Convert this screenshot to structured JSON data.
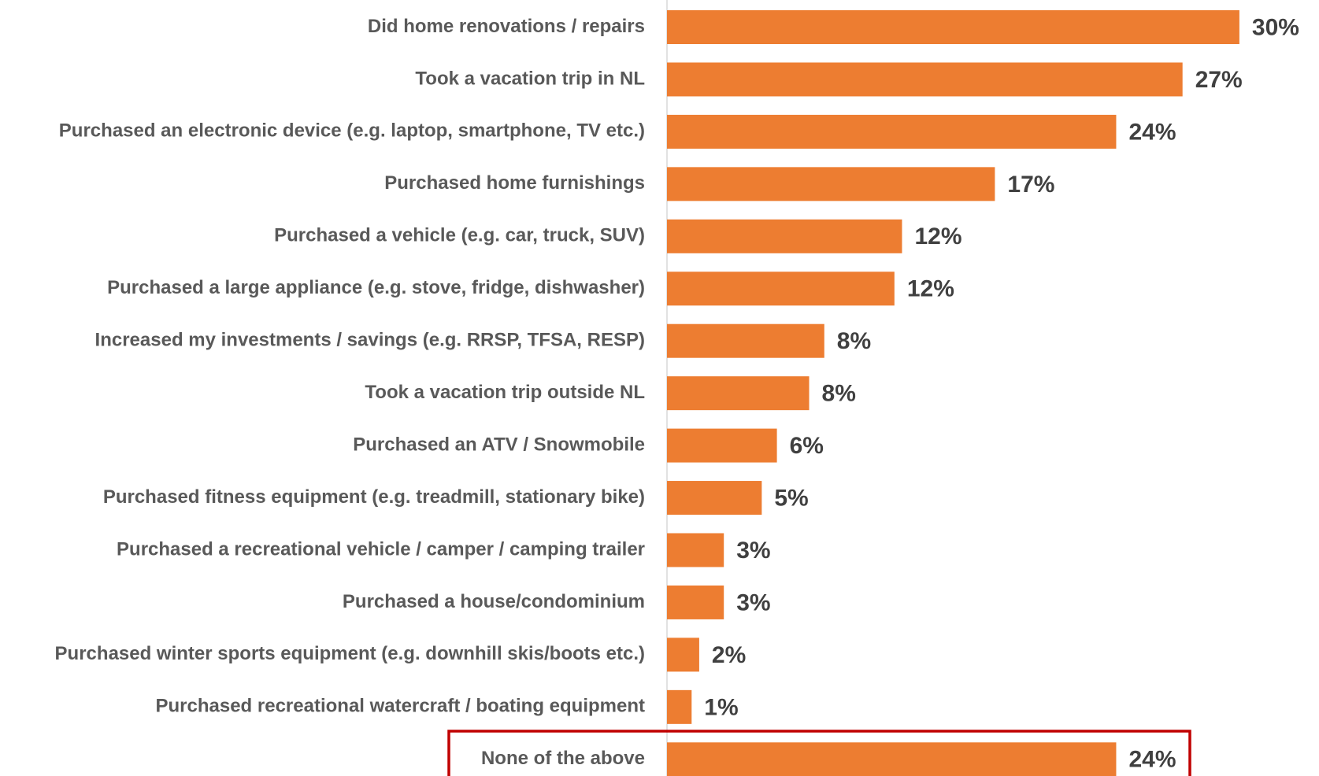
{
  "chart_data": {
    "type": "hbar",
    "categories": [
      "Did home renovations / repairs",
      "Took a vacation trip in NL",
      "Purchased an electronic device (e.g. laptop, smartphone, TV etc.)",
      "Purchased home furnishings",
      "Purchased a vehicle (e.g. car, truck, SUV)",
      "Purchased a large appliance (e.g. stove, fridge, dishwasher)",
      "Increased my investments / savings (e.g. RRSP, TFSA, RESP)",
      "Took a vacation trip outside NL",
      "Purchased an ATV / Snowmobile",
      "Purchased fitness equipment (e.g. treadmill, stationary bike)",
      "Purchased a recreational vehicle / camper / camping trailer",
      "Purchased a house/condominium",
      "Purchased winter sports equipment (e.g. downhill skis/boots etc.)",
      "Purchased recreational watercraft / boating equipment",
      "None of the above"
    ],
    "values": [
      30.2,
      27.2,
      23.7,
      17.3,
      12.4,
      12.0,
      8.3,
      7.5,
      5.8,
      5.0,
      3.0,
      3.0,
      1.7,
      1.3,
      23.7
    ],
    "value_labels": [
      "30%",
      "27%",
      "24%",
      "17%",
      "12%",
      "12%",
      "8%",
      "8%",
      "6%",
      "5%",
      "3%",
      "3%",
      "2%",
      "1%",
      "24%"
    ],
    "color": "#ED7D31",
    "xlim": [
      0,
      34.4
    ]
  }
}
